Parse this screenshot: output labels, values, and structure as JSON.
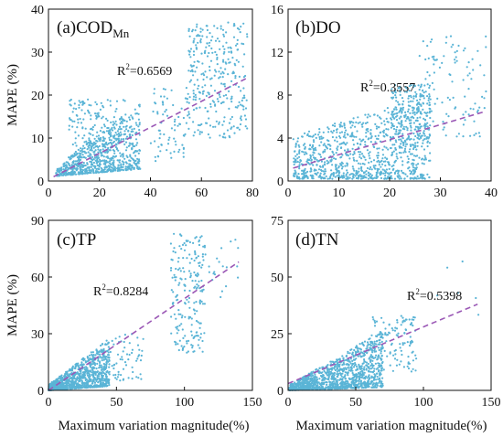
{
  "figure": {
    "xlabel": "Maximum variation magnitude(%)",
    "ylabel": "MAPE (%)"
  },
  "chart_data": [
    {
      "type": "scatter",
      "panel_label": "(a)COD",
      "panel_label_sub": "Mn",
      "r2_label": "R",
      "r2_value": "=0.6569",
      "r2_sup": "2",
      "xlim": [
        0,
        80
      ],
      "ylim": [
        0,
        40
      ],
      "xticks": [
        0,
        20,
        40,
        60,
        80
      ],
      "yticks": [
        0,
        10,
        20,
        30,
        40
      ],
      "fit_line": {
        "x": [
          2,
          78
        ],
        "y": [
          1.0,
          24.0
        ]
      },
      "point_color": "#5ab4d6",
      "line_color": "#9b59b6",
      "clusters": [
        {
          "x": [
            3,
            36
          ],
          "y_lo_slope": 0.05,
          "y_hi_slope": 0.45,
          "y_base": [
            1,
            2
          ],
          "count": 750
        },
        {
          "x": [
            8,
            30
          ],
          "y": [
            8,
            19
          ],
          "count": 150
        },
        {
          "x": [
            40,
            56
          ],
          "y": [
            4,
            22
          ],
          "count": 80
        },
        {
          "x": [
            55,
            78
          ],
          "y": [
            10,
            37
          ],
          "count": 300
        }
      ]
    },
    {
      "type": "scatter",
      "panel_label": "(b)DO",
      "panel_label_sub": "",
      "r2_label": "R",
      "r2_value": "=0.3557",
      "r2_sup": "2",
      "xlim": [
        0,
        40
      ],
      "ylim": [
        0,
        16
      ],
      "xticks": [
        0,
        10,
        20,
        30,
        40
      ],
      "yticks": [
        0,
        4,
        8,
        12,
        16
      ],
      "fit_line": {
        "x": [
          1,
          39
        ],
        "y": [
          1.2,
          6.5
        ]
      },
      "point_color": "#5ab4d6",
      "line_color": "#9b59b6",
      "clusters": [
        {
          "x": [
            1,
            28
          ],
          "y_lo_slope": 0.0,
          "y_hi_slope": 0.15,
          "y_base": [
            0.2,
            4
          ],
          "count": 900
        },
        {
          "x": [
            20,
            28
          ],
          "y": [
            3,
            9
          ],
          "count": 200
        },
        {
          "x": [
            25,
            39
          ],
          "y": [
            4,
            13.5
          ],
          "count": 120
        }
      ]
    },
    {
      "type": "scatter",
      "panel_label": "(c)TP",
      "panel_label_sub": "",
      "r2_label": "R",
      "r2_value": "=0.8284",
      "r2_sup": "2",
      "xlim": [
        0,
        150
      ],
      "ylim": [
        0,
        90
      ],
      "xticks": [
        0,
        50,
        100,
        150
      ],
      "yticks": [
        0,
        30,
        60,
        90
      ],
      "fit_line": {
        "x": [
          0,
          140
        ],
        "y": [
          0,
          68
        ]
      },
      "point_color": "#5ab4d6",
      "line_color": "#9b59b6",
      "clusters": [
        {
          "x": [
            0,
            45
          ],
          "y_lo_slope": 0.05,
          "y_hi_slope": 0.55,
          "y_base": [
            0,
            3
          ],
          "count": 1000
        },
        {
          "x": [
            45,
            70
          ],
          "y": [
            5,
            30
          ],
          "count": 60
        },
        {
          "x": [
            90,
            115
          ],
          "y": [
            20,
            83
          ],
          "count": 200
        },
        {
          "x": [
            115,
            140
          ],
          "y": [
            45,
            80
          ],
          "count": 20
        }
      ]
    },
    {
      "type": "scatter",
      "panel_label": "(d)TN",
      "panel_label_sub": "",
      "r2_label": "R",
      "r2_value": "=0.5398",
      "r2_sup": "2",
      "xlim": [
        0,
        150
      ],
      "ylim": [
        0,
        75
      ],
      "xticks": [
        0,
        50,
        100,
        150
      ],
      "yticks": [
        0,
        25,
        50,
        75
      ],
      "fit_line": {
        "x": [
          0,
          140
        ],
        "y": [
          3,
          38
        ]
      },
      "point_color": "#5ab4d6",
      "line_color": "#9b59b6",
      "clusters": [
        {
          "x": [
            1,
            70
          ],
          "y_lo_slope": 0.02,
          "y_hi_slope": 0.35,
          "y_base": [
            0,
            2
          ],
          "count": 1200
        },
        {
          "x": [
            60,
            95
          ],
          "y": [
            8,
            33
          ],
          "count": 120
        },
        {
          "x": [
            110,
            145
          ],
          "y": [
            30,
            60
          ],
          "count": 6
        }
      ]
    }
  ]
}
